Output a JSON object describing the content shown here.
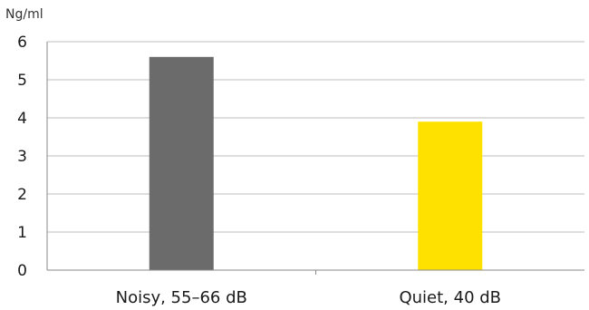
{
  "chart_data": {
    "type": "bar",
    "unit_label": "Ng/ml",
    "categories": [
      "Noisy, 55–66 dB",
      "Quiet, 40 dB"
    ],
    "values": [
      5.6,
      3.9
    ],
    "colors": [
      "#6b6b6b",
      "#ffe100"
    ],
    "ylim": [
      0,
      6
    ],
    "yticks": [
      0,
      1,
      2,
      3,
      4,
      5,
      6
    ],
    "grid": true,
    "legend": "none"
  }
}
